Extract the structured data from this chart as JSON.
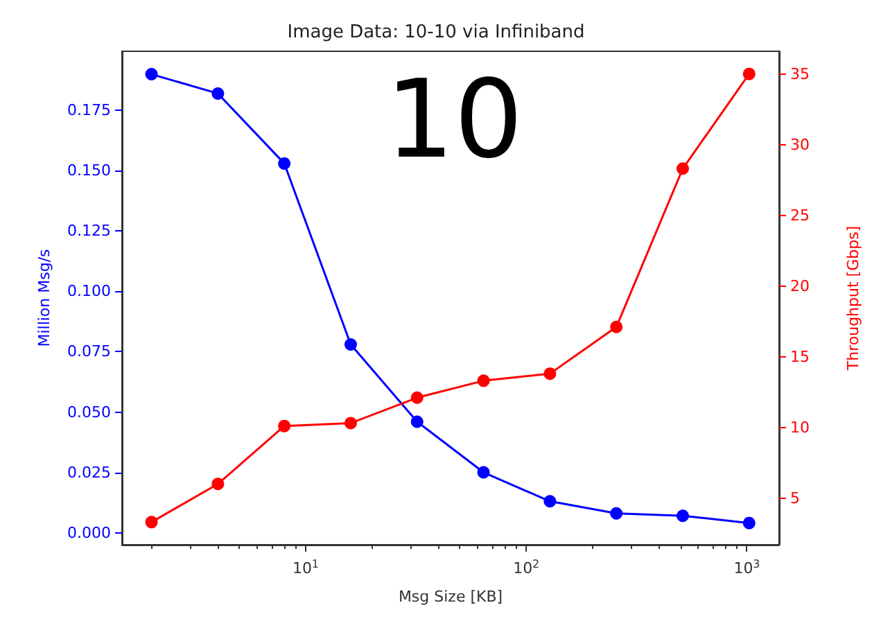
{
  "chart_data": {
    "type": "line",
    "title": "Image Data: 10-10 via Infiniband",
    "xlabel": "Msg Size [KB]",
    "ylabel": "Million Msg/s",
    "y2label": "Throughput [Gbps]",
    "annotations": [
      "10"
    ],
    "x": [
      2,
      4,
      8,
      16,
      32,
      64,
      128,
      256,
      512,
      1024
    ],
    "series": [
      {
        "color": "#0000ff",
        "values": [
          0.19,
          0.182,
          0.153,
          0.078,
          0.046,
          0.025,
          0.013,
          0.008,
          0.007,
          0.004
        ]
      },
      {
        "color": "#ff0000",
        "axis": "y2",
        "values": [
          3.3,
          6.0,
          10.1,
          10.3,
          12.1,
          13.3,
          13.8,
          17.1,
          28.3,
          35.0
        ]
      }
    ],
    "log": "x",
    "xlim": [
      1.47,
      1400
    ],
    "xticks": [
      {
        "value": 10,
        "label": "10$^{1}$"
      },
      {
        "value": 100,
        "label": "10$^{2}$"
      },
      {
        "value": 1000,
        "label": "10$^{3}$"
      }
    ],
    "ylim": [
      -0.005,
      0.1995
    ],
    "yticks": [
      {
        "value": 0,
        "label": "0.000"
      },
      {
        "value": 0.025,
        "label": "0.025"
      },
      {
        "value": 0.05,
        "label": "0.050"
      },
      {
        "value": 0.075,
        "label": "0.075"
      },
      {
        "value": 0.1,
        "label": "0.100"
      },
      {
        "value": 0.125,
        "label": "0.125"
      },
      {
        "value": 0.15,
        "label": "0.150"
      },
      {
        "value": 0.175,
        "label": "0.175"
      }
    ],
    "y2lim": [
      1.7,
      36.6
    ],
    "y2ticks": [
      5,
      10,
      15,
      20,
      25,
      30,
      35
    ],
    "marker": "circle",
    "line_style": "solid",
    "grid": false
  }
}
